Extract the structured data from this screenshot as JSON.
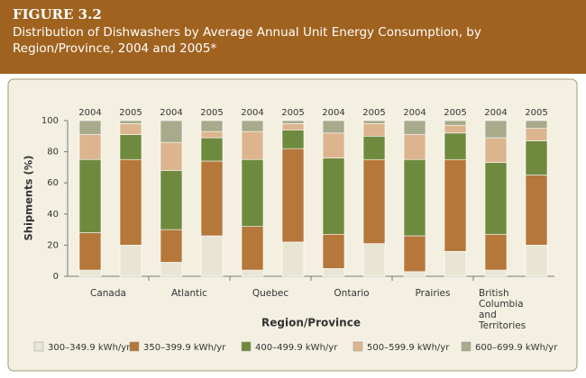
{
  "chart_data": {
    "type": "stacked_bar",
    "figure_label": "FIGURE 3.2",
    "title": "Distribution of Dishwashers by Average Annual Unit Energy Consumption, by Region/Province, 2004 and 2005*",
    "xlabel": "Region/Province",
    "ylabel": "Shipments (%)",
    "ylim": [
      0,
      100
    ],
    "yticks": [
      0,
      20,
      40,
      60,
      80,
      100
    ],
    "series": [
      {
        "name": "300–349.9 kWh/yr",
        "color": "#e8e6d3"
      },
      {
        "name": "350–399.9 kWh/yr",
        "color": "#b5773a"
      },
      {
        "name": "400–499.9 kWh/yr",
        "color": "#6e8a3e"
      },
      {
        "name": "500–599.9 kWh/yr",
        "color": "#dcb58e"
      },
      {
        "name": "600–699.9 kWh/yr",
        "color": "#a7ab8c"
      }
    ],
    "groups": [
      {
        "name": "Canada",
        "bars": [
          {
            "year": "2004",
            "values": [
              4,
              24,
              47,
              16,
              9
            ]
          },
          {
            "year": "2005",
            "values": [
              20,
              55,
              16,
              7,
              2
            ]
          }
        ]
      },
      {
        "name": "Atlantic",
        "bars": [
          {
            "year": "2004",
            "values": [
              9,
              21,
              38,
              18,
              14
            ]
          },
          {
            "year": "2005",
            "values": [
              26,
              48,
              15,
              4,
              7
            ]
          }
        ]
      },
      {
        "name": "Quebec",
        "bars": [
          {
            "year": "2004",
            "values": [
              4,
              28,
              43,
              18,
              7
            ]
          },
          {
            "year": "2005",
            "values": [
              22,
              60,
              12,
              4,
              2
            ]
          }
        ]
      },
      {
        "name": "Ontario",
        "bars": [
          {
            "year": "2004",
            "values": [
              5,
              22,
              49,
              16,
              8
            ]
          },
          {
            "year": "2005",
            "values": [
              21,
              54,
              15,
              8,
              2
            ]
          }
        ]
      },
      {
        "name": "Prairies",
        "bars": [
          {
            "year": "2004",
            "values": [
              3,
              23,
              49,
              16,
              9
            ]
          },
          {
            "year": "2005",
            "values": [
              16,
              59,
              17,
              5,
              3
            ]
          }
        ]
      },
      {
        "name": "British Columbia and Territories",
        "bars": [
          {
            "year": "2004",
            "values": [
              4,
              23,
              46,
              16,
              11
            ]
          },
          {
            "year": "2005",
            "values": [
              20,
              45,
              22,
              8,
              5
            ]
          }
        ]
      }
    ]
  }
}
